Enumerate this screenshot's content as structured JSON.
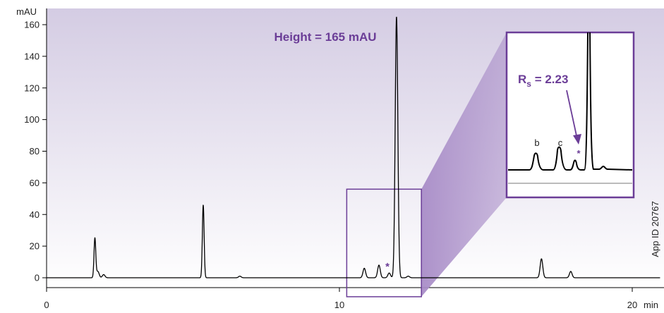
{
  "chart_data": {
    "type": "line",
    "y_unit": "mAU",
    "x_unit": "min",
    "xlim": [
      0,
      21
    ],
    "ylim": [
      -5,
      170
    ],
    "x_ticks": [
      0,
      10,
      20
    ],
    "y_ticks": [
      0,
      20,
      40,
      60,
      80,
      100,
      120,
      140,
      160
    ],
    "peaks": [
      {
        "x": 1.65,
        "y": 25
      },
      {
        "x": 1.75,
        "y": 4
      },
      {
        "x": 1.95,
        "y": 2
      },
      {
        "x": 5.35,
        "y": 46
      },
      {
        "x": 6.6,
        "y": 1
      },
      {
        "x": 10.85,
        "y": 6
      },
      {
        "x": 11.35,
        "y": 8
      },
      {
        "x": 11.7,
        "y": 3
      },
      {
        "x": 11.95,
        "y": 165
      },
      {
        "x": 12.35,
        "y": 1
      },
      {
        "x": 16.9,
        "y": 12
      },
      {
        "x": 17.9,
        "y": 4
      }
    ],
    "highlight_box": {
      "x": [
        10.25,
        12.8
      ],
      "y": [
        -12,
        56
      ]
    },
    "annotations": {
      "height_label": "Height = 165 mAU",
      "star": "*",
      "side_label": "App ID 20767"
    },
    "inset": {
      "resolution_prefix": "R",
      "resolution_sub": "s",
      "resolution_value": " = 2.23",
      "peak_labels": [
        "b",
        "c",
        "*"
      ]
    },
    "colors": {
      "accent": "#6b3d97",
      "trace": "#000000",
      "background_top": "#d4cce3",
      "background_bottom": "#ffffff",
      "zoom_fill": "#a88cc7"
    }
  }
}
